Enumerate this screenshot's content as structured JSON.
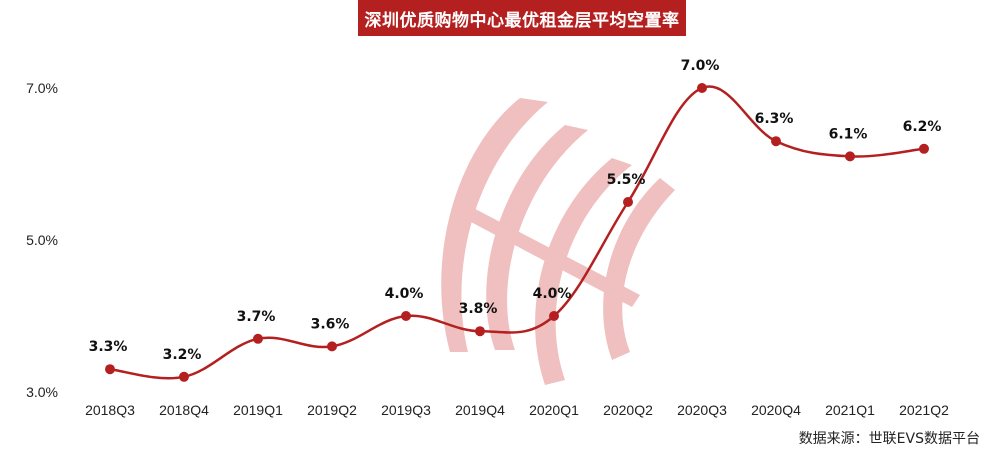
{
  "chart_data": {
    "type": "line",
    "title": "深圳优质购物中心最优租金层平均空置率",
    "categories": [
      "2018Q3",
      "2018Q4",
      "2019Q1",
      "2019Q2",
      "2019Q3",
      "2019Q4",
      "2020Q1",
      "2020Q2",
      "2020Q3",
      "2020Q4",
      "2021Q1",
      "2021Q2"
    ],
    "values": [
      3.3,
      3.2,
      3.7,
      3.6,
      4.0,
      3.8,
      4.0,
      5.5,
      7.0,
      6.3,
      6.1,
      6.2
    ],
    "data_labels": [
      "3.3%",
      "3.2%",
      "3.7%",
      "3.6%",
      "4.0%",
      "3.8%",
      "4.0%",
      "5.5%",
      "7.0%",
      "6.3%",
      "6.1%",
      "6.2%"
    ],
    "yticks": [
      3.0,
      5.0,
      7.0
    ],
    "ytick_labels": [
      "3.0%",
      "5.0%",
      "7.0%"
    ],
    "ylim": [
      3.0,
      7.0
    ],
    "grid": false,
    "line_color": "#b3201f",
    "source": "数据来源：世联EVS数据平台"
  }
}
